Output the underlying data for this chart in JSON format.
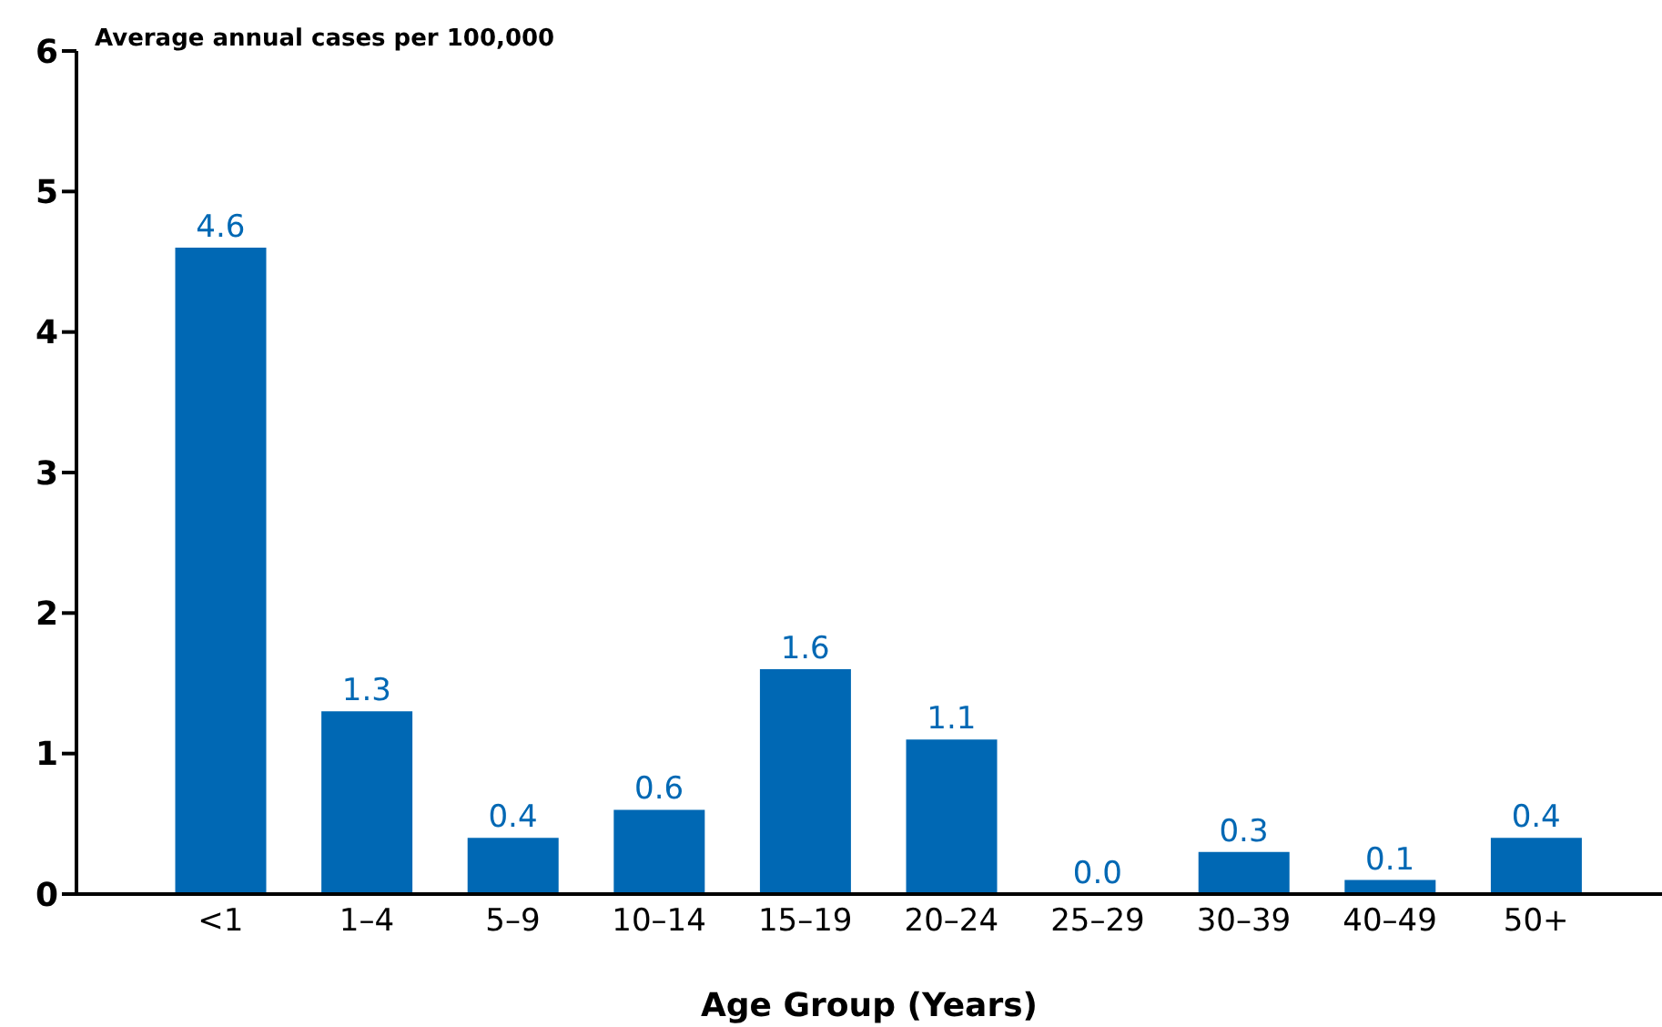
{
  "chart_data": {
    "type": "bar",
    "ylabel": "Average annual cases per 100,000",
    "xlabel": "Age Group (Years)",
    "categories": [
      "<1",
      "1–4",
      "5–9",
      "10–14",
      "15–19",
      "20–24",
      "25–29",
      "30–39",
      "40–49",
      "50+"
    ],
    "values": [
      4.6,
      1.3,
      0.4,
      0.6,
      1.6,
      1.1,
      0.0,
      0.3,
      0.1,
      0.4
    ],
    "color": "#0068b4",
    "value_labels": [
      "4.6",
      "1.3",
      "0.4",
      "0.6",
      "1.6",
      "1.1",
      "0.0",
      "0.3",
      "0.1",
      "0.4"
    ],
    "ylim": [
      0,
      6
    ],
    "yticks": [
      0,
      1,
      2,
      3,
      4,
      5,
      6
    ],
    "grid": false
  }
}
